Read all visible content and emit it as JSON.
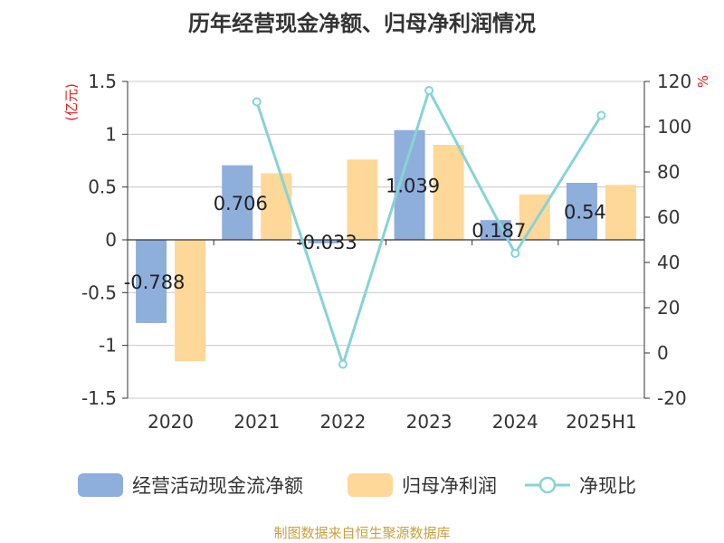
{
  "title": "历年经营现金净额、归母净利润情况",
  "source": "制图数据来自恒生聚源数据库",
  "colors": {
    "ocf": "#8eaedc",
    "profit": "#fdd898",
    "ratio": "#87d3d6",
    "axis_label": "#e02020",
    "source": "#c8a040",
    "grid": "#c8c8c8",
    "text": "#333333"
  },
  "legend": {
    "ocf": "经营活动现金流净额",
    "profit": "归母净利润",
    "ratio": "净现比"
  },
  "chart_data": {
    "type": "bar",
    "title": "历年经营现金净额、归母净利润情况",
    "categories": [
      "2020",
      "2021",
      "2022",
      "2023",
      "2024",
      "2025H1"
    ],
    "y_left": {
      "label": "(亿元)",
      "ylim": [
        -1.5,
        1.5
      ],
      "ticks": [
        -1.5,
        -1,
        -0.5,
        0,
        0.5,
        1,
        1.5
      ],
      "tick_labels": [
        "-1.5",
        "-1",
        "-0.5",
        "0",
        "0.5",
        "1",
        "1.5"
      ]
    },
    "y_right": {
      "label": "%",
      "ylim": [
        -20,
        120
      ],
      "ticks": [
        -20,
        0,
        20,
        40,
        60,
        80,
        100,
        120
      ],
      "tick_labels": [
        "-20",
        "0",
        "20",
        "40",
        "60",
        "80",
        "100",
        "120"
      ]
    },
    "grid": true,
    "legend_position": "bottom",
    "series": [
      {
        "name": "经营活动现金流净额",
        "type": "bar",
        "axis": "left",
        "values": [
          -0.788,
          0.706,
          -0.033,
          1.039,
          0.187,
          0.54
        ],
        "labels": [
          "-0.788",
          "0.706",
          "-0.033",
          "1.039",
          "0.187",
          "0.54"
        ]
      },
      {
        "name": "归母净利润",
        "type": "bar",
        "axis": "left",
        "values": [
          -1.15,
          0.63,
          0.76,
          0.9,
          0.43,
          0.52
        ]
      },
      {
        "name": "净现比",
        "type": "line",
        "axis": "right",
        "values": [
          null,
          111,
          -5,
          116,
          44,
          105
        ]
      }
    ]
  }
}
